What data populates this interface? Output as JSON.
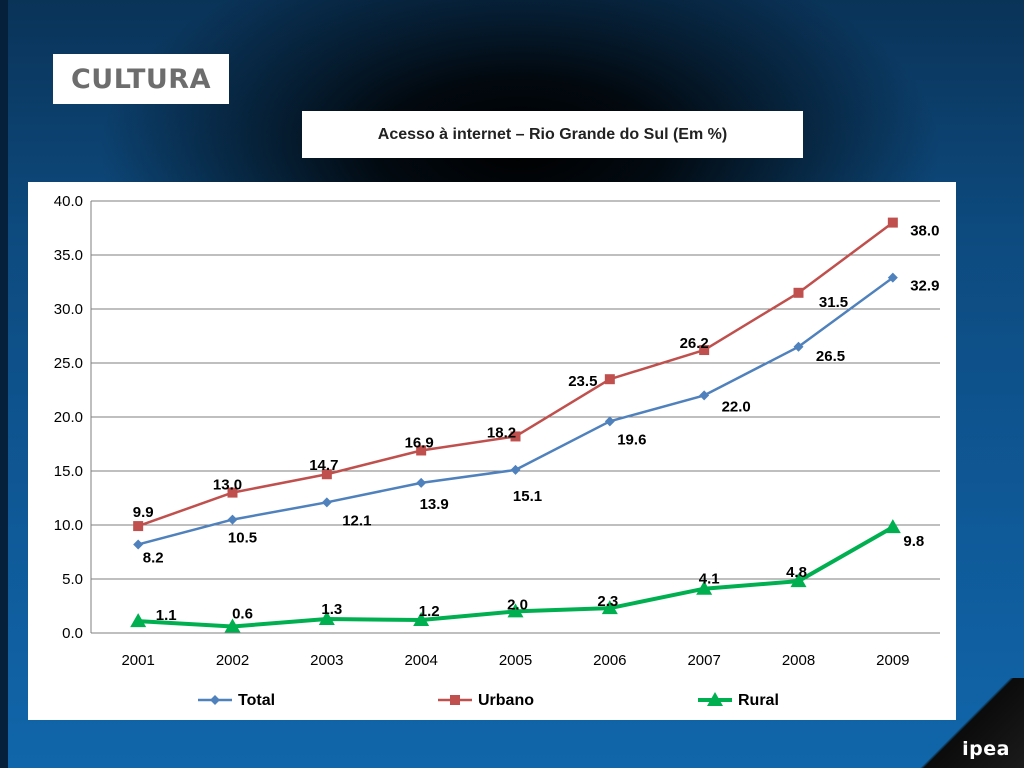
{
  "header": {
    "section_title": "CULTURA",
    "chart_title": "Acesso à internet – Rio Grande do Sul (Em %)"
  },
  "footer": {
    "brand": "ipea"
  },
  "colors": {
    "total": "#4F81BD",
    "urbano": "#C0504D",
    "rural": "#00B050",
    "grid": "#7f7f7f"
  },
  "chart_data": {
    "type": "line",
    "title": "Acesso à internet – Rio Grande do Sul (Em %)",
    "xlabel": "",
    "ylabel": "",
    "categories": [
      "2001",
      "2002",
      "2003",
      "2004",
      "2005",
      "2006",
      "2007",
      "2008",
      "2009"
    ],
    "ylim": [
      0,
      40
    ],
    "y_ticks": [
      "0.0",
      "5.0",
      "10.0",
      "15.0",
      "20.0",
      "25.0",
      "30.0",
      "35.0",
      "40.0"
    ],
    "grid": true,
    "legend_position": "bottom",
    "series": [
      {
        "name": "Total",
        "marker": "diamond",
        "values": [
          8.2,
          10.5,
          12.1,
          13.9,
          15.1,
          19.6,
          22.0,
          26.5,
          32.9
        ],
        "labels": [
          "8.2",
          "10.5",
          "12.1",
          "13.9",
          "15.1",
          "19.6",
          "22.0",
          "26.5",
          "32.9"
        ]
      },
      {
        "name": "Urbano",
        "marker": "square",
        "values": [
          9.9,
          13.0,
          14.7,
          16.9,
          18.2,
          23.5,
          26.2,
          31.5,
          38.0
        ],
        "labels": [
          "9.9",
          "13.0",
          "14.7",
          "16.9",
          "18.2",
          "23.5",
          "26.2",
          "31.5",
          "38.0"
        ]
      },
      {
        "name": "Rural",
        "marker": "triangle",
        "values": [
          1.1,
          0.6,
          1.3,
          1.2,
          2.0,
          2.3,
          4.1,
          4.8,
          9.8
        ],
        "labels": [
          "1.1",
          "0.6",
          "1.3",
          "1.2",
          "2.0",
          "2.3",
          "4.1",
          "4.8",
          "9.8"
        ]
      }
    ]
  }
}
